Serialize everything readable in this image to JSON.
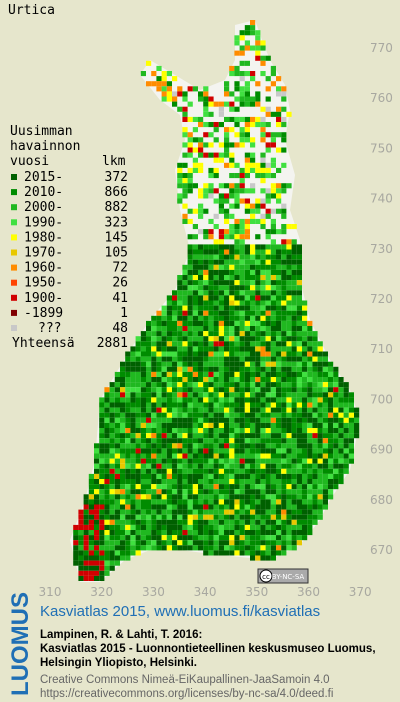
{
  "title": "Urtica",
  "legend": {
    "heading": [
      "Uusimman",
      "havainnon",
      "vuosi"
    ],
    "count_header": "lkm",
    "items": [
      {
        "label": "2015-",
        "count": 372,
        "color": "#006000"
      },
      {
        "label": "2010-",
        "count": 866,
        "color": "#008c00"
      },
      {
        "label": "2000-",
        "count": 882,
        "color": "#20b820"
      },
      {
        "label": "1990-",
        "count": 323,
        "color": "#40e040"
      },
      {
        "label": "1980-",
        "count": 145,
        "color": "#ffff00"
      },
      {
        "label": "1970-",
        "count": 105,
        "color": "#e8c800"
      },
      {
        "label": "1960-",
        "count": 72,
        "color": "#ff8c00"
      },
      {
        "label": "1950-",
        "count": 26,
        "color": "#ff4400"
      },
      {
        "label": "1900-",
        "count": 41,
        "color": "#d00000"
      },
      {
        "label": "-1899",
        "count": 1,
        "color": "#800000"
      },
      {
        "label": "???",
        "count": 48,
        "color": "#c8c8c8"
      }
    ],
    "total_label": "Yhteensä",
    "total": 2881
  },
  "axes": {
    "y_labels": [
      770,
      760,
      750,
      740,
      730,
      720,
      710,
      700,
      690,
      680,
      670
    ],
    "x_labels": [
      310,
      320,
      330,
      340,
      350,
      360,
      370
    ]
  },
  "badge": {
    "icon": "cc",
    "text": "BY-NC-SA"
  },
  "footer": {
    "logo": "LUOMUS",
    "link": "Kasviatlas 2015, www.luomus.fi/kasviatlas",
    "citation": [
      "Lampinen, R. & Lahti, T. 2016:",
      "Kasviatlas 2015 - Luonnontieteellinen keskusmuseo Luomus,",
      "Helsingin Yliopisto, Helsinki."
    ],
    "license": [
      "Creative Commons Nimeä-EiKaupallinen-JaaSamoin 4.0",
      "https://creativecommons.org/licenses/by-nc-sa/4.0/deed.fi"
    ]
  }
}
